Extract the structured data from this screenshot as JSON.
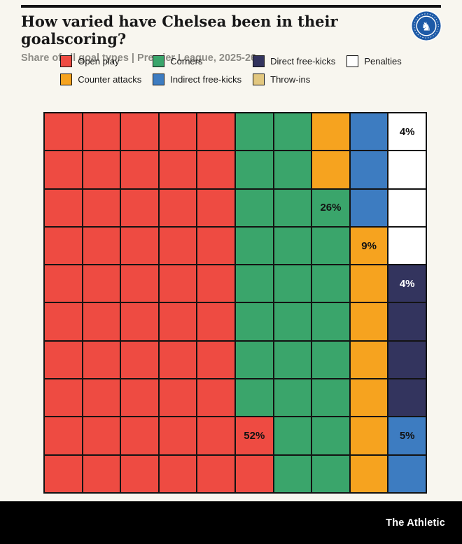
{
  "header": {
    "title": "How varied have Chelsea been in their goalscoring?",
    "subtitle": "Share of all goal types | Premier League, 2025-26",
    "crest_icon": "chelsea-crest"
  },
  "footer": {
    "brand": "The Athletic"
  },
  "colors": {
    "background": "#f8f6ef",
    "open_play": "#ee4b42",
    "counter_attacks": "#f6a31f",
    "corners": "#3aa56b",
    "indirect_free_kicks": "#3d7cc1",
    "direct_free_kicks": "#33345e",
    "throw_ins": "#e2c77f",
    "penalties": "#ffffff",
    "grid_line": "#131313",
    "footer_bg": "#000000",
    "crest_blue": "#1d5aa7"
  },
  "legend": {
    "items": [
      {
        "label": "Open play",
        "color": "#ee4b42"
      },
      {
        "label": "Corners",
        "color": "#3aa56b"
      },
      {
        "label": "Direct free-kicks",
        "color": "#33345e"
      },
      {
        "label": "Penalties",
        "color": "#ffffff"
      },
      {
        "label": "Counter attacks",
        "color": "#f6a31f"
      },
      {
        "label": "Indirect free-kicks",
        "color": "#3d7cc1"
      },
      {
        "label": "Throw-ins",
        "color": "#e2c77f"
      }
    ]
  },
  "chart_data": {
    "type": "waffle",
    "title": "How varied have Chelsea been in their goalscoring?",
    "subtitle": "Share of all goal types | Premier League, 2025-26",
    "grid": {
      "rows": 10,
      "cols": 10,
      "cell_represents": "1% of goals"
    },
    "series": [
      {
        "name": "Open play",
        "value": 52,
        "color": "#ee4b42",
        "code": "R"
      },
      {
        "name": "Corners",
        "value": 26,
        "color": "#3aa56b",
        "code": "G"
      },
      {
        "name": "Counter attacks",
        "value": 9,
        "color": "#f6a31f",
        "code": "O"
      },
      {
        "name": "Indirect free-kicks",
        "value": 5,
        "color": "#3d7cc1",
        "code": "B"
      },
      {
        "name": "Direct free-kicks",
        "value": 4,
        "color": "#33345e",
        "code": "N"
      },
      {
        "name": "Penalties",
        "value": 4,
        "color": "#ffffff",
        "code": "W"
      },
      {
        "name": "Throw-ins",
        "value": 0,
        "color": "#e2c77f",
        "code": "T"
      }
    ],
    "color_map": {
      "R": "#ee4b42",
      "G": "#3aa56b",
      "O": "#f6a31f",
      "B": "#3d7cc1",
      "N": "#33345e",
      "W": "#ffffff",
      "T": "#e2c77f"
    },
    "cells": [
      "RRRRRGGOBW",
      "RRRRRGGOBW",
      "RRRRRGGGBW",
      "RRRRRGGGOW",
      "RRRRRGGGON",
      "RRRRRGGGON",
      "RRRRRGGGON",
      "RRRRRGGGON",
      "RRRRRRGGOB",
      "RRRRRRGGOB"
    ],
    "labels": [
      {
        "row": 0,
        "col": 9,
        "text": "4%",
        "series": "Penalties",
        "text_color": "dark"
      },
      {
        "row": 2,
        "col": 7,
        "text": "26%",
        "series": "Corners",
        "text_color": "dark"
      },
      {
        "row": 3,
        "col": 8,
        "text": "9%",
        "series": "Counter attacks",
        "text_color": "dark"
      },
      {
        "row": 4,
        "col": 9,
        "text": "4%",
        "series": "Direct free-kicks",
        "text_color": "light"
      },
      {
        "row": 8,
        "col": 5,
        "text": "52%",
        "series": "Open play",
        "text_color": "dark"
      },
      {
        "row": 8,
        "col": 9,
        "text": "5%",
        "series": "Indirect free-kicks",
        "text_color": "dark"
      }
    ]
  }
}
